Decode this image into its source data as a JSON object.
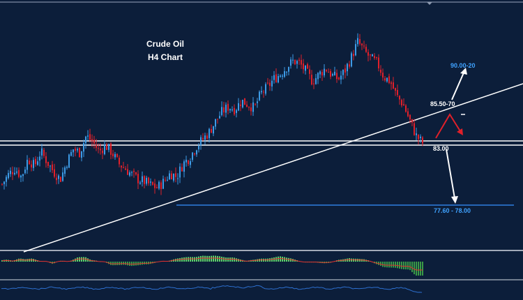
{
  "chart_data": {
    "type": "candlestick",
    "title": "Crude Oil",
    "subtitle": "H4 Chart",
    "colors": {
      "background": "#0c1e3a",
      "bull": "#3d9be6",
      "bear": "#e0202a",
      "level_line": "#ffffff",
      "target_line": "#2f7fe0",
      "target_text": "#3fa2ff",
      "histogram_up": "#5fd16a",
      "histogram_down": "#3a9a46",
      "signal": "#e03030",
      "oscillator": "#2d6fcf"
    },
    "close_path": [
      79.6,
      80.4,
      80.9,
      80.2,
      81.7,
      81.1,
      82.3,
      81.4,
      80.6,
      80.0,
      81.4,
      82.5,
      82.2,
      83.6,
      83.1,
      82.3,
      82.8,
      82.2,
      81.3,
      80.9,
      80.4,
      80.0,
      79.8,
      79.5,
      79.3,
      79.8,
      80.5,
      80.2,
      81.3,
      81.8,
      82.7,
      83.3,
      83.9,
      84.8,
      85.6,
      86.0,
      85.8,
      86.5,
      86.2,
      85.9,
      87.1,
      87.6,
      88.3,
      88.7,
      89.3,
      89.8,
      89.6,
      88.9,
      88.1,
      88.7,
      89.2,
      88.6,
      88.3,
      89.0,
      90.1,
      91.4,
      90.6,
      90.0,
      89.6,
      88.5,
      88.1,
      86.9,
      86.2,
      84.9,
      83.6,
      83.0
    ],
    "levels": {
      "support": "83.00",
      "resistance": "85.50-70",
      "upper_target": "90.00-20",
      "lower_target": "77.60 - 78.00"
    },
    "scenario": {
      "bullish_target": "90.00-20",
      "pullback_to": "85.50-70",
      "breakdown_target": "77.60 - 78.00"
    },
    "indicators": [
      "histogram oscillator",
      "line oscillator"
    ]
  }
}
